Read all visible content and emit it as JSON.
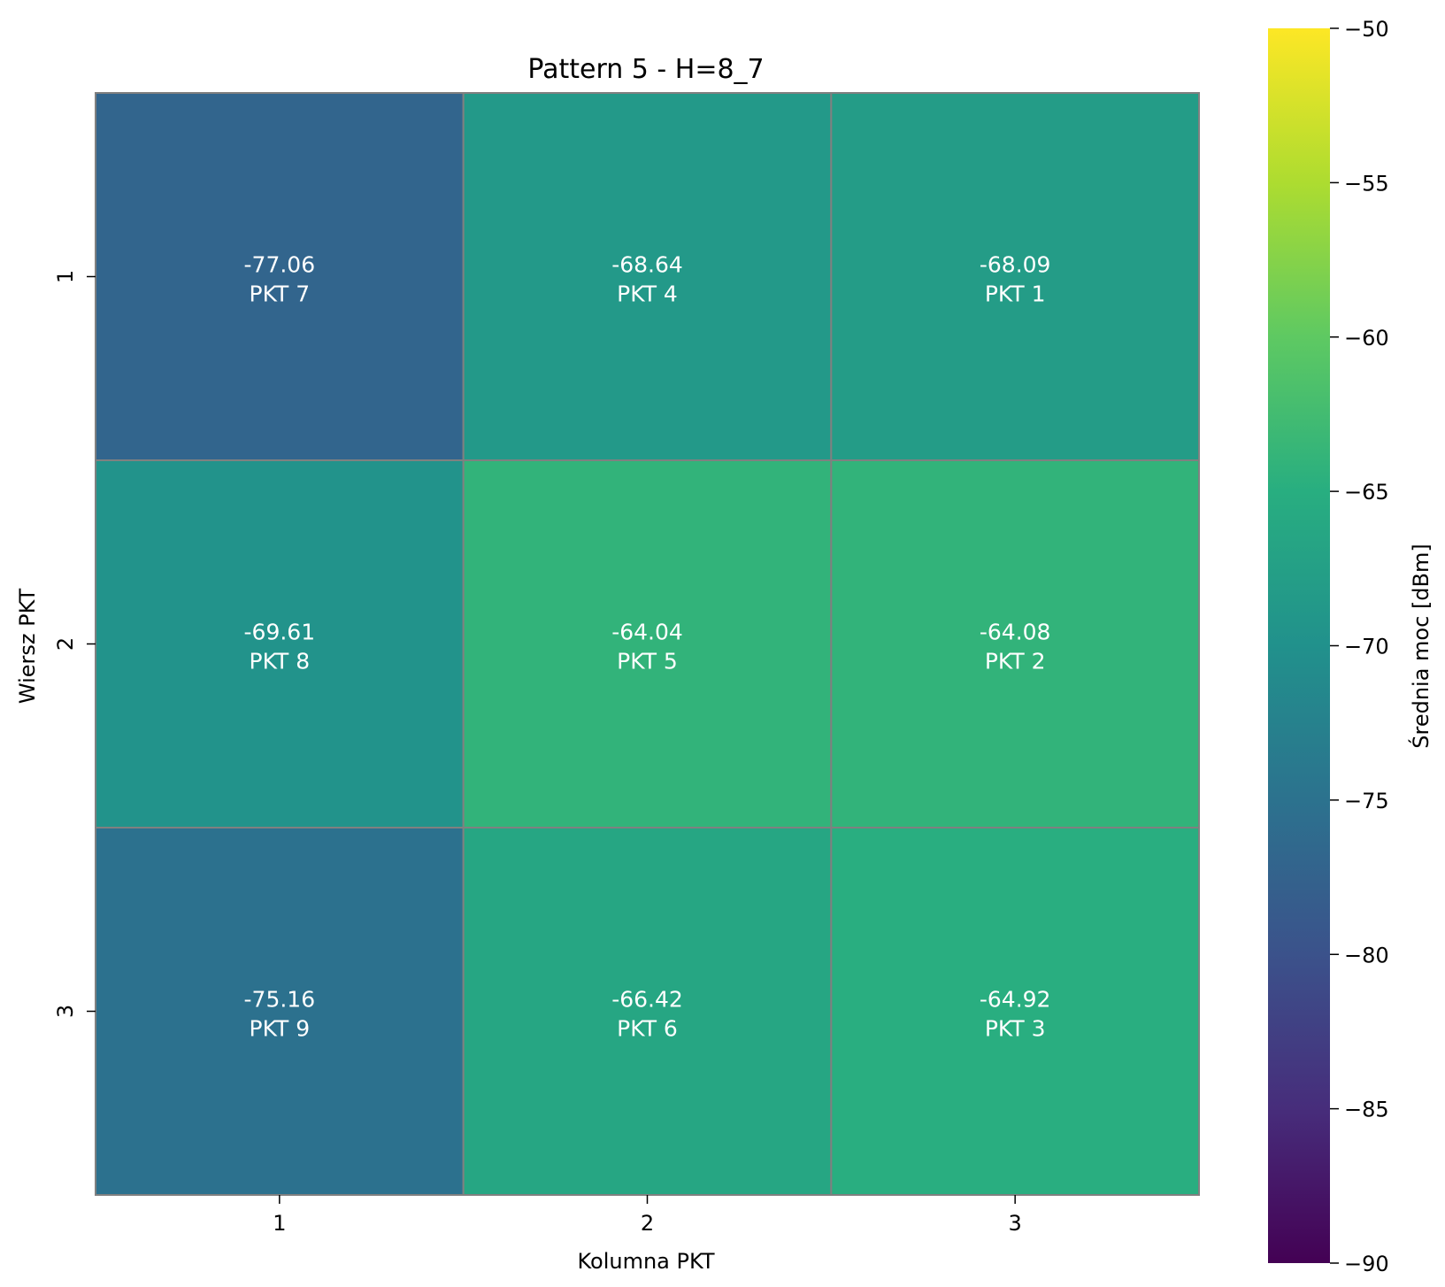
{
  "chart_data": {
    "type": "heatmap",
    "title": "Pattern 5 - H=8_7",
    "xlabel": "Kolumna PKT",
    "ylabel": "Wiersz PKT",
    "x_categories": [
      "1",
      "2",
      "3"
    ],
    "y_categories": [
      "1",
      "2",
      "3"
    ],
    "cells": [
      [
        {
          "value": "-77.06",
          "label": "PKT 7"
        },
        {
          "value": "-68.64",
          "label": "PKT 4"
        },
        {
          "value": "-68.09",
          "label": "PKT 1"
        }
      ],
      [
        {
          "value": "-69.61",
          "label": "PKT 8"
        },
        {
          "value": "-64.04",
          "label": "PKT 5"
        },
        {
          "value": "-64.08",
          "label": "PKT 2"
        }
      ],
      [
        {
          "value": "-75.16",
          "label": "PKT 9"
        },
        {
          "value": "-66.42",
          "label": "PKT 6"
        },
        {
          "value": "-64.92",
          "label": "PKT 3"
        }
      ]
    ],
    "colorbar": {
      "label": "Średnia moc [dBm]",
      "range": [
        -90,
        -50
      ],
      "ticks": [
        "−90",
        "−85",
        "−80",
        "−75",
        "−70",
        "−65",
        "−60",
        "−55",
        "−50"
      ],
      "colormap": "viridis"
    },
    "grid_line_color": "#808080"
  }
}
